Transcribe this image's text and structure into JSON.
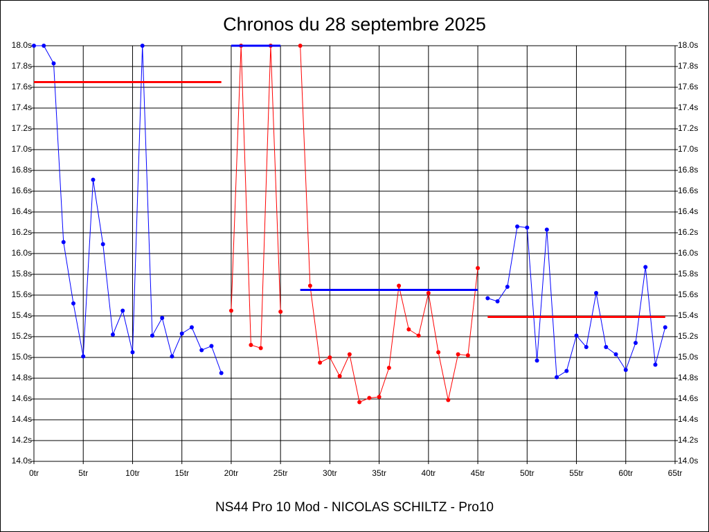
{
  "chart_data": {
    "type": "line",
    "title": "Chronos du 28 septembre 2025",
    "footer": "NS44 Pro 10 Mod - NICOLAS SCHILTZ - Pro10",
    "xlim": [
      0,
      65
    ],
    "ylim": [
      14.0,
      18.0
    ],
    "grid": true,
    "xticks": [
      {
        "value": 0,
        "label": "0tr"
      },
      {
        "value": 5,
        "label": "5tr"
      },
      {
        "value": 10,
        "label": "10tr"
      },
      {
        "value": 15,
        "label": "15tr"
      },
      {
        "value": 20,
        "label": "20tr"
      },
      {
        "value": 25,
        "label": "25tr"
      },
      {
        "value": 30,
        "label": "30tr"
      },
      {
        "value": 35,
        "label": "35tr"
      },
      {
        "value": 40,
        "label": "40tr"
      },
      {
        "value": 45,
        "label": "45tr"
      },
      {
        "value": 50,
        "label": "50tr"
      },
      {
        "value": 55,
        "label": "55tr"
      },
      {
        "value": 60,
        "label": "60tr"
      },
      {
        "value": 65,
        "label": "65tr"
      }
    ],
    "yticks": [
      {
        "value": 14.0,
        "label": "14.0s"
      },
      {
        "value": 14.2,
        "label": "14.2s"
      },
      {
        "value": 14.4,
        "label": "14.4s"
      },
      {
        "value": 14.6,
        "label": "14.6s"
      },
      {
        "value": 14.8,
        "label": "14.8s"
      },
      {
        "value": 15.0,
        "label": "15.0s"
      },
      {
        "value": 15.2,
        "label": "15.2s"
      },
      {
        "value": 15.4,
        "label": "15.4s"
      },
      {
        "value": 15.6,
        "label": "15.6s"
      },
      {
        "value": 15.8,
        "label": "15.8s"
      },
      {
        "value": 16.0,
        "label": "16.0s"
      },
      {
        "value": 16.2,
        "label": "16.2s"
      },
      {
        "value": 16.4,
        "label": "16.4s"
      },
      {
        "value": 16.6,
        "label": "16.6s"
      },
      {
        "value": 16.8,
        "label": "16.8s"
      },
      {
        "value": 17.0,
        "label": "17.0s"
      },
      {
        "value": 17.2,
        "label": "17.2s"
      },
      {
        "value": 17.4,
        "label": "17.4s"
      },
      {
        "value": 17.6,
        "label": "17.6s"
      },
      {
        "value": 17.8,
        "label": "17.8s"
      },
      {
        "value": 18.0,
        "label": "18.0s"
      }
    ],
    "series": [
      {
        "color": "#0000ff",
        "markers": true,
        "x": [
          0,
          1,
          2,
          3,
          4,
          5,
          6,
          7,
          8,
          9,
          10,
          11,
          12,
          13,
          14,
          15,
          16,
          17,
          18,
          19
        ],
        "values": [
          18.0,
          18.0,
          17.83,
          16.11,
          15.52,
          15.01,
          16.71,
          16.09,
          15.22,
          15.45,
          15.05,
          18.0,
          15.21,
          15.38,
          15.01,
          15.23,
          15.29,
          15.07,
          15.11,
          14.85
        ]
      },
      {
        "color": "#ff0000",
        "markers": true,
        "x": [
          20,
          21,
          22,
          23,
          24,
          25,
          26,
          27,
          28,
          29,
          30,
          31,
          32,
          33,
          34,
          35,
          36,
          37,
          38,
          39,
          40,
          41,
          42,
          43,
          44,
          45
        ],
        "values": [
          15.45,
          18.0,
          15.12,
          15.09,
          18.0,
          15.44,
          null,
          18.0,
          15.69,
          14.95,
          15.0,
          14.82,
          15.03,
          14.57,
          14.61,
          14.62,
          14.9,
          15.69,
          15.27,
          15.21,
          15.62,
          15.05,
          14.59,
          15.03,
          15.02,
          15.86
        ]
      },
      {
        "color": "#0000ff",
        "markers": true,
        "x": [
          46,
          47,
          48,
          49,
          50,
          51,
          52,
          53,
          54,
          55,
          56,
          57,
          58,
          59,
          60,
          61,
          62,
          63,
          64
        ],
        "values": [
          15.57,
          15.54,
          15.68,
          16.26,
          16.25,
          14.97,
          16.23,
          14.81,
          14.87,
          15.21,
          15.1,
          15.62,
          15.1,
          15.03,
          14.88,
          15.14,
          15.87,
          14.93,
          15.29
        ]
      },
      {
        "color": "#ff0000",
        "markers": false,
        "x": [
          0,
          19
        ],
        "values": [
          17.65,
          17.65
        ]
      },
      {
        "color": "#0000ff",
        "markers": false,
        "x": [
          20,
          25
        ],
        "values": [
          18.0,
          18.0
        ]
      },
      {
        "color": "#0000ff",
        "markers": false,
        "x": [
          27,
          45
        ],
        "values": [
          15.65,
          15.65
        ]
      },
      {
        "color": "#ff0000",
        "markers": false,
        "x": [
          46,
          64
        ],
        "values": [
          15.39,
          15.39
        ]
      }
    ]
  }
}
